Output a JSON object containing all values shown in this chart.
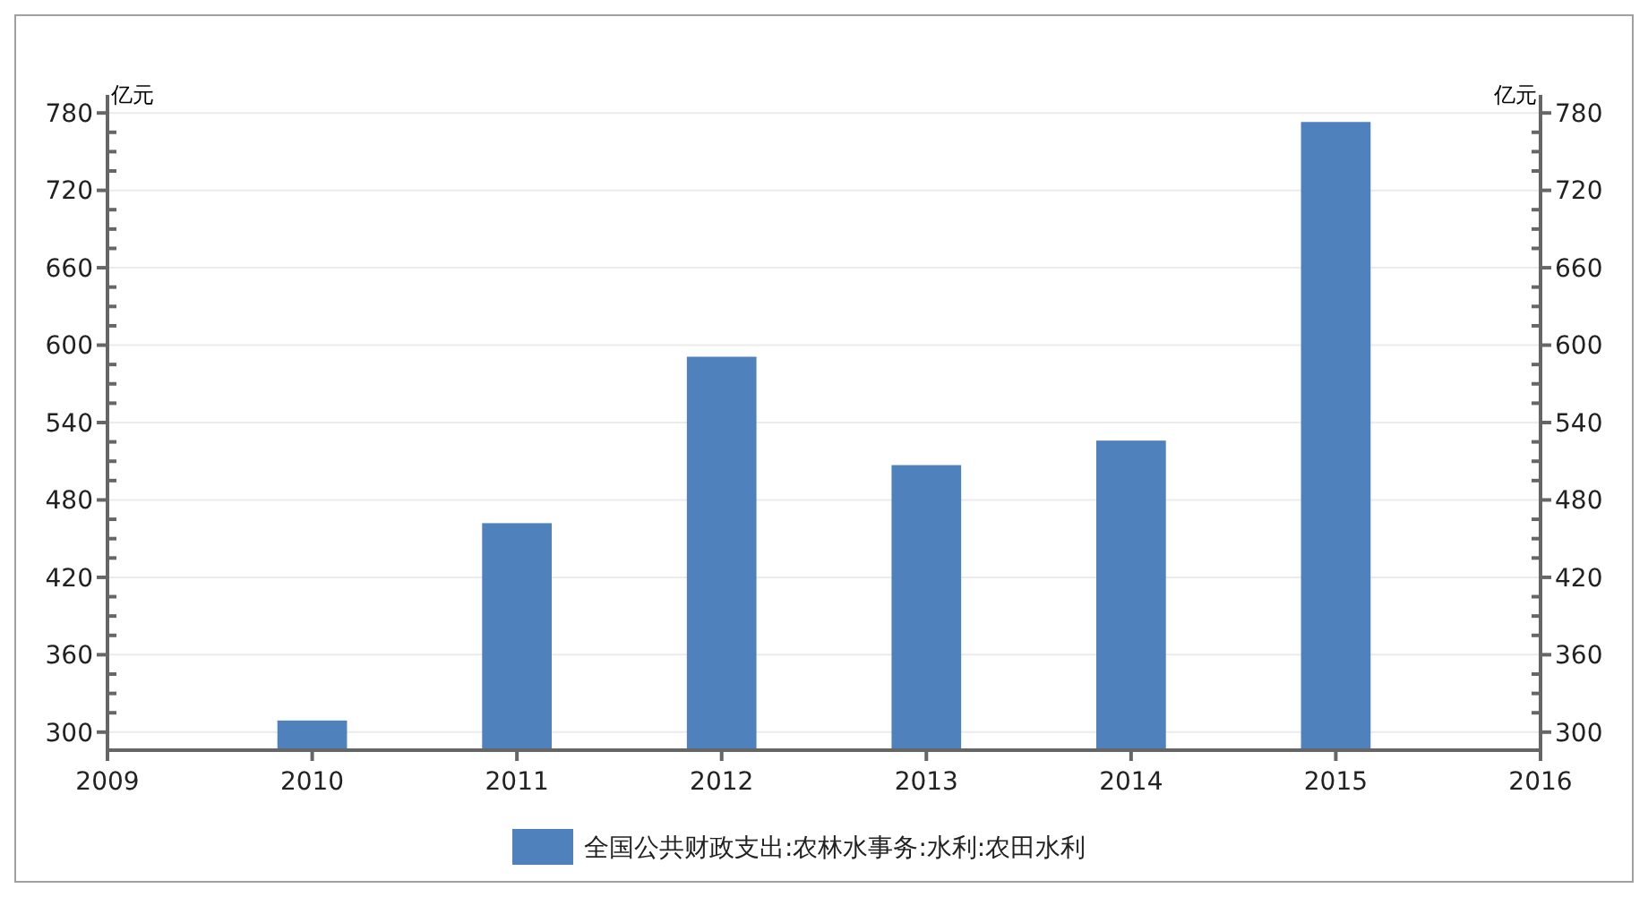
{
  "chart_data": {
    "type": "bar",
    "x": [
      2010,
      2011,
      2012,
      2013,
      2014,
      2015
    ],
    "series": [
      {
        "name": "全国公共财政支出:农林水事务:水利:农田水利",
        "color": "#4f81bd",
        "values": [
          309,
          462,
          591,
          507,
          526,
          773
        ]
      }
    ],
    "xlim": [
      2009,
      2016
    ],
    "xticks": [
      2009,
      2010,
      2011,
      2012,
      2013,
      2014,
      2015,
      2016
    ],
    "ylim": [
      286,
      794
    ],
    "yticks": [
      300,
      {
        "value": 315,
        "label": null
      },
      {
        "value": 330,
        "label": null
      },
      {
        "value": 345,
        "label": null
      },
      360,
      {
        "value": 375,
        "label": null
      },
      {
        "value": 390,
        "label": null
      },
      {
        "value": 405,
        "label": null
      },
      420,
      {
        "value": 435,
        "label": null
      },
      {
        "value": 450,
        "label": null
      },
      {
        "value": 465,
        "label": null
      },
      480,
      {
        "value": 495,
        "label": null
      },
      {
        "value": 510,
        "label": null
      },
      {
        "value": 525,
        "label": null
      },
      540,
      {
        "value": 555,
        "label": null
      },
      {
        "value": 570,
        "label": null
      },
      {
        "value": 585,
        "label": null
      },
      600,
      {
        "value": 615,
        "label": null
      },
      {
        "value": 630,
        "label": null
      },
      {
        "value": 645,
        "label": null
      },
      660,
      {
        "value": 675,
        "label": null
      },
      {
        "value": 690,
        "label": null
      },
      {
        "value": 705,
        "label": null
      },
      720,
      {
        "value": 735,
        "label": null
      },
      {
        "value": 750,
        "label": null
      },
      {
        "value": 765,
        "label": null
      },
      780
    ],
    "y2lim": [
      286,
      794
    ],
    "y2ticks": [
      300,
      {
        "value": 315,
        "label": null
      },
      {
        "value": 330,
        "label": null
      },
      {
        "value": 345,
        "label": null
      },
      360,
      {
        "value": 375,
        "label": null
      },
      {
        "value": 390,
        "label": null
      },
      {
        "value": 405,
        "label": null
      },
      420,
      {
        "value": 435,
        "label": null
      },
      {
        "value": 450,
        "label": null
      },
      {
        "value": 465,
        "label": null
      },
      480,
      {
        "value": 495,
        "label": null
      },
      {
        "value": 510,
        "label": null
      },
      {
        "value": 525,
        "label": null
      },
      540,
      {
        "value": 555,
        "label": null
      },
      {
        "value": 570,
        "label": null
      },
      {
        "value": 585,
        "label": null
      },
      600,
      {
        "value": 615,
        "label": null
      },
      {
        "value": 630,
        "label": null
      },
      {
        "value": 645,
        "label": null
      },
      660,
      {
        "value": 675,
        "label": null
      },
      {
        "value": 690,
        "label": null
      },
      {
        "value": 705,
        "label": null
      },
      720,
      {
        "value": 735,
        "label": null
      },
      {
        "value": 750,
        "label": null
      },
      {
        "value": 765,
        "label": null
      },
      780
    ],
    "ylabel": "亿元",
    "y2label": "亿元",
    "grid": "y",
    "legend": "bottom"
  }
}
